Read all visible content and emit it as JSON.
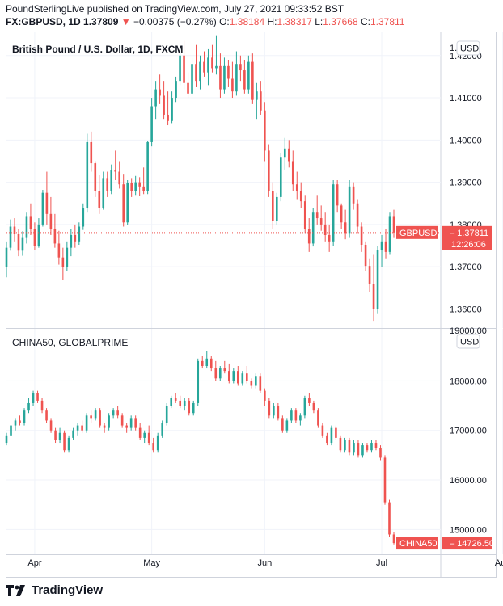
{
  "header": {
    "publisher_line": "PoundSterlingLive published on TradingView.com, July 27, 2021 09:33:52 BST",
    "symbol": "FX:GBPUSD, 1D",
    "last": "1.37809",
    "change_arrow": "▼",
    "change": "−0.00375 (−0.27%)",
    "o_label": "O:",
    "o_value": "1.38184",
    "h_label": "H:",
    "h_value": "1.38317",
    "l_label": "L:",
    "l_value": "1.37668",
    "c_label": "C:",
    "c_value": "1.37811"
  },
  "footer": {
    "brand": "TradingView",
    "logo_icon": "tradingview-logo-icon"
  },
  "colors": {
    "up": "#26a69a",
    "down": "#ef5350",
    "grid": "#f0f3fa",
    "axis_text": "#131722"
  },
  "chart_data": [
    {
      "type": "candlestick",
      "title": "British Pound / U.S. Dollar, 1D, FXCM",
      "currency_badge": "USD",
      "ylim": [
        1.3555,
        1.4255
      ],
      "y_ticks": [
        "1.42000",
        "1.41000",
        "1.40000",
        "1.39000",
        "1.38000",
        "1.37000",
        "1.36000"
      ],
      "y_tick_values": [
        1.42,
        1.41,
        1.4,
        1.39,
        1.38,
        1.37,
        1.36
      ],
      "y_top_clipped_label": "1.",
      "last_price_line": 1.3781,
      "price_label": {
        "name": "GBPUSD",
        "value": "1.37811",
        "countdown": "12:26:06"
      },
      "x_ticks": [
        "Apr",
        "May",
        "Jun",
        "Jul",
        "Aug"
      ],
      "x_tick_index": [
        7,
        36,
        64,
        93,
        123
      ],
      "ohlc": [
        [
          1.37,
          1.376,
          1.3675,
          1.3745
        ],
        [
          1.3745,
          1.3812,
          1.3738,
          1.3795
        ],
        [
          1.3795,
          1.3815,
          1.376,
          1.3778
        ],
        [
          1.3778,
          1.379,
          1.3725,
          1.3738
        ],
        [
          1.3738,
          1.3784,
          1.3726,
          1.377
        ],
        [
          1.377,
          1.383,
          1.3755,
          1.382
        ],
        [
          1.382,
          1.385,
          1.3775,
          1.379
        ],
        [
          1.379,
          1.3805,
          1.374,
          1.375
        ],
        [
          1.375,
          1.3815,
          1.3745,
          1.38
        ],
        [
          1.38,
          1.3882,
          1.3795,
          1.3875
        ],
        [
          1.3875,
          1.3925,
          1.38,
          1.3825
        ],
        [
          1.3825,
          1.3865,
          1.3775,
          1.379
        ],
        [
          1.379,
          1.3825,
          1.3745,
          1.3755
        ],
        [
          1.3755,
          1.3785,
          1.3705,
          1.3722
        ],
        [
          1.3722,
          1.3745,
          1.3668,
          1.37
        ],
        [
          1.37,
          1.376,
          1.369,
          1.3745
        ],
        [
          1.3745,
          1.379,
          1.3725,
          1.3775
        ],
        [
          1.3775,
          1.38,
          1.3745,
          1.376
        ],
        [
          1.376,
          1.3805,
          1.3752,
          1.3795
        ],
        [
          1.3795,
          1.385,
          1.3787,
          1.3838
        ],
        [
          1.3838,
          1.4015,
          1.383,
          1.3995
        ],
        [
          1.3995,
          1.402,
          1.3925,
          1.3945
        ],
        [
          1.3945,
          1.395,
          1.3865,
          1.388
        ],
        [
          1.388,
          1.3918,
          1.3825,
          1.384
        ],
        [
          1.384,
          1.3925,
          1.3835,
          1.391
        ],
        [
          1.391,
          1.3925,
          1.3865,
          1.388
        ],
        [
          1.388,
          1.3942,
          1.3872,
          1.3928
        ],
        [
          1.3928,
          1.3975,
          1.3905,
          1.3925
        ],
        [
          1.3925,
          1.395,
          1.3885,
          1.3895
        ],
        [
          1.3895,
          1.392,
          1.3795,
          1.3805
        ],
        [
          1.3805,
          1.3905,
          1.3798,
          1.3898
        ],
        [
          1.3898,
          1.391,
          1.3865,
          1.388
        ],
        [
          1.388,
          1.3915,
          1.387,
          1.39
        ],
        [
          1.39,
          1.3912,
          1.3868,
          1.389
        ],
        [
          1.389,
          1.3935,
          1.3872,
          1.388
        ],
        [
          1.388,
          1.3998,
          1.3872,
          1.3995
        ],
        [
          1.3995,
          1.41,
          1.3985,
          1.408
        ],
        [
          1.408,
          1.414,
          1.405,
          1.412
        ],
        [
          1.412,
          1.4155,
          1.4085,
          1.4105
        ],
        [
          1.4105,
          1.414,
          1.405,
          1.406
        ],
        [
          1.406,
          1.4115,
          1.4035,
          1.4045
        ],
        [
          1.4045,
          1.4115,
          1.404,
          1.41
        ],
        [
          1.41,
          1.415,
          1.409,
          1.414
        ],
        [
          1.414,
          1.4215,
          1.413,
          1.42
        ],
        [
          1.42,
          1.4235,
          1.412,
          1.4135
        ],
        [
          1.4135,
          1.416,
          1.41,
          1.411
        ],
        [
          1.411,
          1.4195,
          1.4105,
          1.418
        ],
        [
          1.418,
          1.4225,
          1.4125,
          1.414
        ],
        [
          1.414,
          1.42,
          1.412,
          1.4185
        ],
        [
          1.4185,
          1.421,
          1.415,
          1.416
        ],
        [
          1.416,
          1.4215,
          1.413,
          1.4195
        ],
        [
          1.4195,
          1.4225,
          1.416,
          1.417
        ],
        [
          1.417,
          1.4248,
          1.4155,
          1.4175
        ],
        [
          1.4175,
          1.4205,
          1.41,
          1.412
        ],
        [
          1.412,
          1.4195,
          1.411,
          1.4175
        ],
        [
          1.4175,
          1.419,
          1.4125,
          1.4145
        ],
        [
          1.4145,
          1.4185,
          1.41,
          1.4115
        ],
        [
          1.4115,
          1.421,
          1.4105,
          1.418
        ],
        [
          1.418,
          1.42,
          1.414,
          1.4165
        ],
        [
          1.4165,
          1.419,
          1.411,
          1.412
        ],
        [
          1.412,
          1.42,
          1.411,
          1.4185
        ],
        [
          1.4185,
          1.4205,
          1.4085,
          1.4095
        ],
        [
          1.4095,
          1.4135,
          1.405,
          1.4115
        ],
        [
          1.4115,
          1.414,
          1.406,
          1.407
        ],
        [
          1.407,
          1.409,
          1.395,
          1.3975
        ],
        [
          1.3975,
          1.399,
          1.3865,
          1.388
        ],
        [
          1.388,
          1.39,
          1.379,
          1.3808
        ],
        [
          1.3808,
          1.3875,
          1.38,
          1.3865
        ],
        [
          1.3865,
          1.397,
          1.3855,
          1.396
        ],
        [
          1.396,
          1.4005,
          1.393,
          1.398
        ],
        [
          1.398,
          1.4,
          1.3935,
          1.395
        ],
        [
          1.395,
          1.3975,
          1.388,
          1.3895
        ],
        [
          1.3895,
          1.3925,
          1.386,
          1.388
        ],
        [
          1.388,
          1.39,
          1.384,
          1.3855
        ],
        [
          1.3855,
          1.387,
          1.378,
          1.379
        ],
        [
          1.379,
          1.3815,
          1.3735,
          1.3755
        ],
        [
          1.3755,
          1.384,
          1.3748,
          1.383
        ],
        [
          1.383,
          1.387,
          1.38,
          1.3815
        ],
        [
          1.3815,
          1.3845,
          1.3785,
          1.38
        ],
        [
          1.38,
          1.383,
          1.376,
          1.3775
        ],
        [
          1.3775,
          1.38,
          1.3735,
          1.376
        ],
        [
          1.376,
          1.3905,
          1.375,
          1.3895
        ],
        [
          1.3895,
          1.3905,
          1.383,
          1.3845
        ],
        [
          1.3845,
          1.385,
          1.379,
          1.3805
        ],
        [
          1.3805,
          1.3835,
          1.3765,
          1.378
        ],
        [
          1.378,
          1.3905,
          1.377,
          1.389
        ],
        [
          1.389,
          1.39,
          1.3835,
          1.385
        ],
        [
          1.385,
          1.386,
          1.378,
          1.3795
        ],
        [
          1.3795,
          1.3805,
          1.3735,
          1.3752
        ],
        [
          1.3752,
          1.376,
          1.369,
          1.3702
        ],
        [
          1.3702,
          1.372,
          1.364,
          1.366
        ],
        [
          1.366,
          1.373,
          1.3572,
          1.36
        ],
        [
          1.36,
          1.375,
          1.359,
          1.374
        ],
        [
          1.374,
          1.3775,
          1.37,
          1.376
        ],
        [
          1.376,
          1.379,
          1.372,
          1.3735
        ],
        [
          1.3735,
          1.383,
          1.373,
          1.382
        ],
        [
          1.382,
          1.3835,
          1.377,
          1.3781
        ]
      ]
    },
    {
      "type": "candlestick",
      "title": "CHINA50, GLOBALPRIME",
      "currency_badge": "USD",
      "ylim": [
        14500,
        19050
      ],
      "y_ticks": [
        "18000.00",
        "17000.00",
        "16000.00",
        "15000.00"
      ],
      "y_tick_values": [
        18000,
        17000,
        16000,
        15000
      ],
      "y_top_clipped_label": "19000.00",
      "price_label": {
        "name": "CHINA50",
        "value": "14726.50"
      },
      "x_ticks": [
        "Apr",
        "May",
        "Jun",
        "Jul",
        "Aug"
      ],
      "x_tick_index": [
        7,
        36,
        64,
        93,
        123
      ],
      "ohlc": [
        [
          16750,
          16950,
          16700,
          16900
        ],
        [
          16900,
          17150,
          16850,
          17100
        ],
        [
          17100,
          17250,
          17000,
          17200
        ],
        [
          17200,
          17300,
          17100,
          17150
        ],
        [
          17150,
          17450,
          17100,
          17400
        ],
        [
          17400,
          17650,
          17350,
          17550
        ],
        [
          17550,
          17800,
          17500,
          17750
        ],
        [
          17750,
          17800,
          17550,
          17600
        ],
        [
          17600,
          17650,
          17350,
          17400
        ],
        [
          17400,
          17450,
          17150,
          17200
        ],
        [
          17200,
          17250,
          16950,
          17000
        ],
        [
          17000,
          17050,
          16750,
          16800
        ],
        [
          16800,
          17050,
          16750,
          16950
        ],
        [
          16950,
          17000,
          16550,
          16600
        ],
        [
          16600,
          16900,
          16550,
          16850
        ],
        [
          16850,
          17050,
          16800,
          17000
        ],
        [
          17000,
          17150,
          16900,
          17100
        ],
        [
          17100,
          17200,
          16950,
          17000
        ],
        [
          17000,
          17350,
          16950,
          17300
        ],
        [
          17300,
          17400,
          17150,
          17250
        ],
        [
          17250,
          17450,
          17200,
          17400
        ],
        [
          17400,
          17450,
          17050,
          17100
        ],
        [
          17100,
          17150,
          16950,
          17050
        ],
        [
          17050,
          17350,
          17000,
          17300
        ],
        [
          17300,
          17450,
          17250,
          17400
        ],
        [
          17400,
          17500,
          17250,
          17300
        ],
        [
          17300,
          17350,
          17050,
          17100
        ],
        [
          17100,
          17150,
          16950,
          17050
        ],
        [
          17050,
          17300,
          17000,
          17250
        ],
        [
          17250,
          17300,
          17000,
          17050
        ],
        [
          17050,
          17150,
          16800,
          16850
        ],
        [
          16850,
          17000,
          16750,
          16950
        ],
        [
          16950,
          17100,
          16700,
          16750
        ],
        [
          16750,
          16850,
          16550,
          16600
        ],
        [
          16600,
          16950,
          16550,
          16900
        ],
        [
          16900,
          17200,
          16850,
          17150
        ],
        [
          17150,
          17550,
          17100,
          17500
        ],
        [
          17500,
          17700,
          17450,
          17650
        ],
        [
          17650,
          17750,
          17550,
          17600
        ],
        [
          17600,
          17700,
          17450,
          17500
        ],
        [
          17500,
          17650,
          17400,
          17600
        ],
        [
          17600,
          17650,
          17300,
          17350
        ],
        [
          17350,
          17600,
          17300,
          17550
        ],
        [
          17550,
          18450,
          17500,
          18400
        ],
        [
          18400,
          18500,
          18250,
          18300
        ],
        [
          18300,
          18600,
          18250,
          18450
        ],
        [
          18450,
          18500,
          18200,
          18250
        ],
        [
          18250,
          18400,
          18000,
          18050
        ],
        [
          18050,
          18300,
          18000,
          18250
        ],
        [
          18250,
          18400,
          18150,
          18200
        ],
        [
          18200,
          18350,
          17950,
          18000
        ],
        [
          18000,
          18250,
          17950,
          18200
        ],
        [
          18200,
          18300,
          17900,
          17950
        ],
        [
          17950,
          18200,
          17900,
          18150
        ],
        [
          18150,
          18300,
          17950,
          18000
        ],
        [
          18000,
          18050,
          17850,
          17900
        ],
        [
          17900,
          18150,
          17850,
          18100
        ],
        [
          18100,
          18150,
          17750,
          17800
        ],
        [
          17800,
          17850,
          17500,
          17600
        ],
        [
          17600,
          17650,
          17250,
          17300
        ],
        [
          17300,
          17550,
          17250,
          17500
        ],
        [
          17500,
          17550,
          17200,
          17250
        ],
        [
          17250,
          17300,
          16950,
          17000
        ],
        [
          17000,
          17250,
          16950,
          17200
        ],
        [
          17200,
          17450,
          17150,
          17400
        ],
        [
          17400,
          17450,
          17150,
          17200
        ],
        [
          17200,
          17350,
          17100,
          17300
        ],
        [
          17300,
          17700,
          17250,
          17650
        ],
        [
          17650,
          17750,
          17500,
          17550
        ],
        [
          17550,
          17600,
          17350,
          17400
        ],
        [
          17400,
          17450,
          17050,
          17100
        ],
        [
          17100,
          17150,
          16850,
          16900
        ],
        [
          16900,
          16950,
          16700,
          16750
        ],
        [
          16750,
          17100,
          16700,
          17050
        ],
        [
          17050,
          17100,
          16800,
          16850
        ],
        [
          16850,
          16900,
          16550,
          16600
        ],
        [
          16600,
          16850,
          16550,
          16800
        ],
        [
          16800,
          16850,
          16500,
          16550
        ],
        [
          16550,
          16800,
          16500,
          16750
        ],
        [
          16750,
          16800,
          16450,
          16500
        ],
        [
          16500,
          16750,
          16450,
          16700
        ],
        [
          16700,
          16750,
          16550,
          16600
        ],
        [
          16600,
          16800,
          16550,
          16750
        ],
        [
          16750,
          16800,
          16600,
          16650
        ],
        [
          16650,
          16700,
          16400,
          16450
        ],
        [
          16450,
          16500,
          15500,
          15550
        ],
        [
          15550,
          15600,
          14850,
          14900
        ],
        [
          14900,
          14950,
          14700,
          14727
        ]
      ]
    }
  ]
}
